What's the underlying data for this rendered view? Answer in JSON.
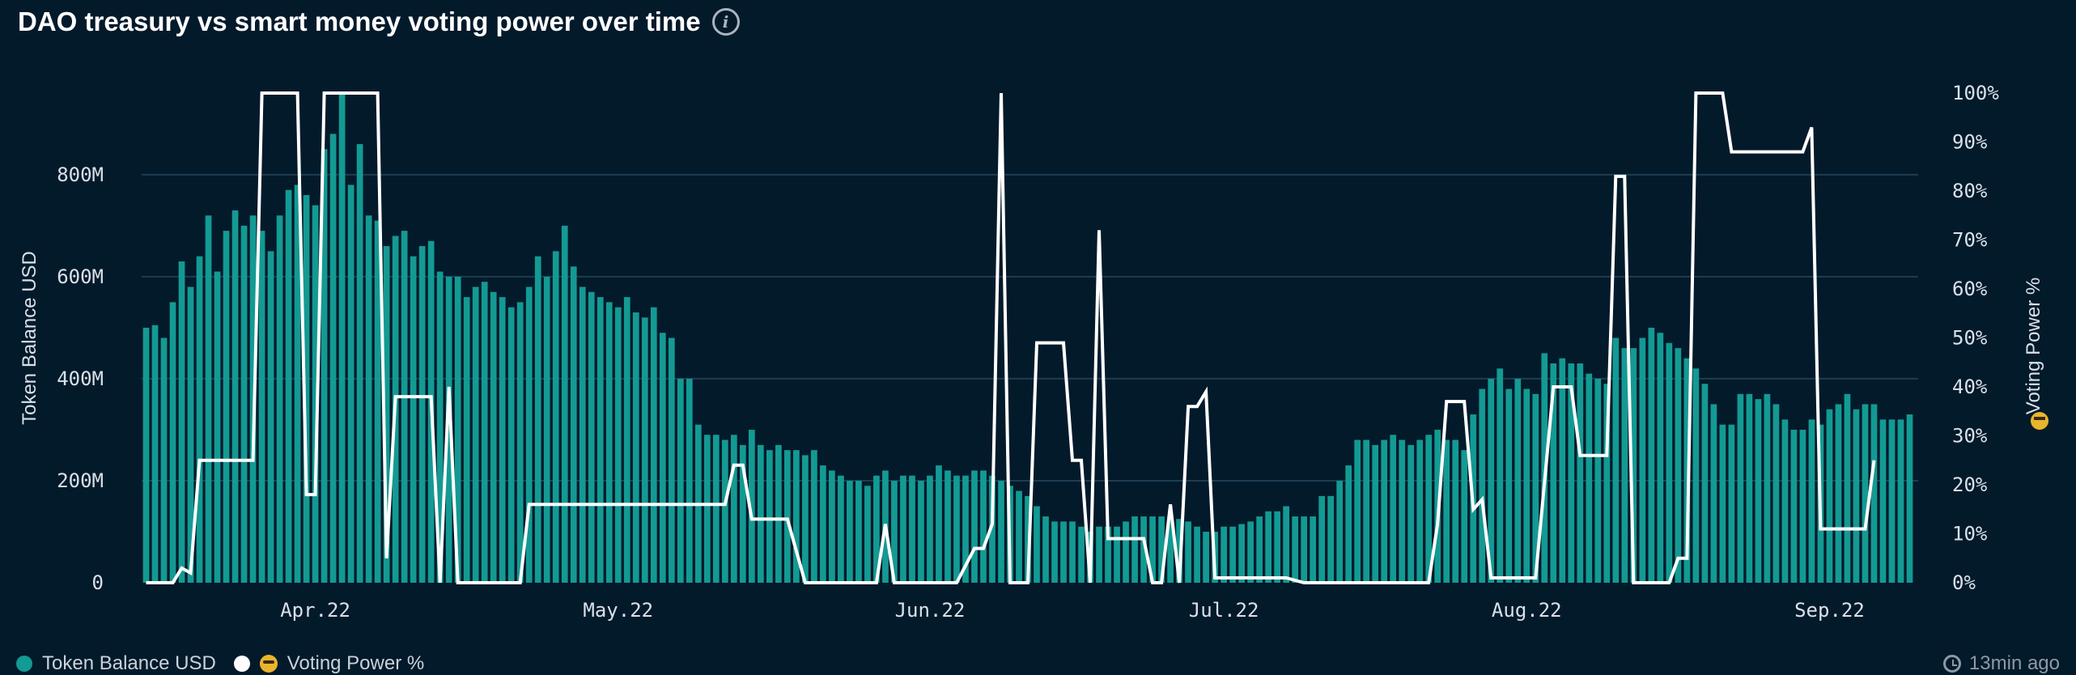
{
  "header": {
    "title": "DAO treasury vs smart money voting power over time",
    "info_icon": "info-icon"
  },
  "legend": {
    "items": [
      {
        "label": "Token Balance USD",
        "color": "#139a93"
      },
      {
        "label": "Voting Power %",
        "color": "#ffffff",
        "icon": "sunglasses-emoji-icon"
      }
    ]
  },
  "footer": {
    "timestamp": "13min ago",
    "icon": "clock-icon"
  },
  "colors": {
    "background": "#031a2b",
    "bar": "#139a93",
    "line": "#ffffff",
    "grid": "#1d3d52"
  },
  "chart_data": {
    "type": "bar",
    "title": "DAO treasury vs smart money voting power over time",
    "ylabel": "Token Balance USD",
    "y2label": "Voting Power %",
    "ylim": [
      0,
      960000000
    ],
    "y2lim": [
      0,
      100
    ],
    "yticks": [
      "0",
      "200M",
      "400M",
      "600M",
      "800M"
    ],
    "y2ticks": [
      "0%",
      "10%",
      "20%",
      "30%",
      "40%",
      "50%",
      "60%",
      "70%",
      "80%",
      "90%",
      "100%"
    ],
    "xticks": [
      "Apr.22",
      "May.22",
      "Jun.22",
      "Jul.22",
      "Aug.22",
      "Sep.22"
    ],
    "grid": true,
    "legend_position": "bottom-left",
    "series": [
      {
        "name": "Token Balance USD",
        "type": "bar",
        "values": [
          500,
          505,
          480,
          550,
          630,
          580,
          640,
          720,
          610,
          690,
          730,
          700,
          720,
          690,
          650,
          720,
          770,
          780,
          760,
          740,
          850,
          880,
          960,
          780,
          860,
          720,
          710,
          660,
          680,
          690,
          640,
          660,
          670,
          610,
          600,
          600,
          560,
          580,
          590,
          570,
          560,
          540,
          550,
          580,
          640,
          600,
          650,
          700,
          620,
          580,
          570,
          560,
          550,
          540,
          560,
          530,
          520,
          540,
          490,
          480,
          400,
          400,
          310,
          290,
          290,
          280,
          290,
          270,
          300,
          270,
          260,
          270,
          260,
          260,
          250,
          260,
          230,
          220,
          210,
          200,
          200,
          190,
          210,
          220,
          200,
          210,
          210,
          200,
          210,
          230,
          220,
          210,
          210,
          220,
          220,
          210,
          200,
          190,
          180,
          170,
          150,
          130,
          120,
          120,
          120,
          110,
          100,
          110,
          110,
          110,
          120,
          130,
          130,
          130,
          130,
          130,
          125,
          120,
          110,
          100,
          100,
          110,
          110,
          115,
          120,
          130,
          140,
          140,
          150,
          130,
          130,
          130,
          170,
          170,
          200,
          230,
          280,
          280,
          270,
          280,
          290,
          280,
          270,
          280,
          290,
          300,
          280,
          280,
          260,
          330,
          380,
          400,
          420,
          380,
          400,
          380,
          370,
          450,
          430,
          440,
          430,
          430,
          410,
          400,
          390,
          480,
          460,
          460,
          480,
          500,
          490,
          470,
          460,
          440,
          420,
          390,
          350,
          310,
          310,
          370,
          370,
          360,
          370,
          350,
          320,
          300,
          300,
          320,
          310,
          340,
          350,
          370,
          340,
          350,
          350,
          320,
          320,
          320,
          330
        ]
      },
      {
        "name": "Voting Power %",
        "type": "line",
        "x_count": 220,
        "points": [
          [
            0,
            0
          ],
          [
            2,
            0
          ],
          [
            3,
            0
          ],
          [
            4,
            3
          ],
          [
            5,
            2
          ],
          [
            6,
            25
          ],
          [
            11,
            25
          ],
          [
            12,
            25
          ],
          [
            13,
            100
          ],
          [
            17,
            100
          ],
          [
            18,
            18
          ],
          [
            19,
            18
          ],
          [
            20,
            100
          ],
          [
            26,
            100
          ],
          [
            27,
            5
          ],
          [
            28,
            38
          ],
          [
            32,
            38
          ],
          [
            33,
            0
          ],
          [
            34,
            40
          ],
          [
            35,
            0
          ],
          [
            42,
            0
          ],
          [
            43,
            16
          ],
          [
            65,
            16
          ],
          [
            66,
            24
          ],
          [
            67,
            24
          ],
          [
            68,
            13
          ],
          [
            72,
            13
          ],
          [
            74,
            0
          ],
          [
            81,
            0
          ],
          [
            82,
            0
          ],
          [
            83,
            12
          ],
          [
            84,
            0
          ],
          [
            89,
            0
          ],
          [
            91,
            0
          ],
          [
            93,
            7
          ],
          [
            94,
            7
          ],
          [
            95,
            12
          ],
          [
            96,
            100
          ],
          [
            97,
            0
          ],
          [
            99,
            0
          ],
          [
            100,
            49
          ],
          [
            103,
            49
          ],
          [
            104,
            25
          ],
          [
            105,
            25
          ],
          [
            106,
            0
          ],
          [
            107,
            72
          ],
          [
            108,
            9
          ],
          [
            112,
            9
          ],
          [
            113,
            0
          ],
          [
            114,
            0
          ],
          [
            115,
            16
          ],
          [
            116,
            0
          ],
          [
            117,
            36
          ],
          [
            118,
            36
          ],
          [
            119,
            39
          ],
          [
            120,
            1
          ],
          [
            128,
            1
          ],
          [
            130,
            0
          ],
          [
            140,
            0
          ],
          [
            144,
            0
          ],
          [
            145,
            12
          ],
          [
            146,
            37
          ],
          [
            148,
            37
          ],
          [
            149,
            15
          ],
          [
            150,
            17
          ],
          [
            151,
            1
          ],
          [
            156,
            1
          ],
          [
            158,
            40
          ],
          [
            160,
            40
          ],
          [
            161,
            26
          ],
          [
            164,
            26
          ],
          [
            165,
            83
          ],
          [
            166,
            83
          ],
          [
            167,
            0
          ],
          [
            171,
            0
          ],
          [
            172,
            5
          ],
          [
            173,
            5
          ],
          [
            174,
            100
          ],
          [
            177,
            100
          ],
          [
            178,
            88
          ],
          [
            186,
            88
          ],
          [
            187,
            93
          ],
          [
            188,
            11
          ],
          [
            193,
            11
          ],
          [
            194,
            25
          ]
        ]
      }
    ]
  }
}
